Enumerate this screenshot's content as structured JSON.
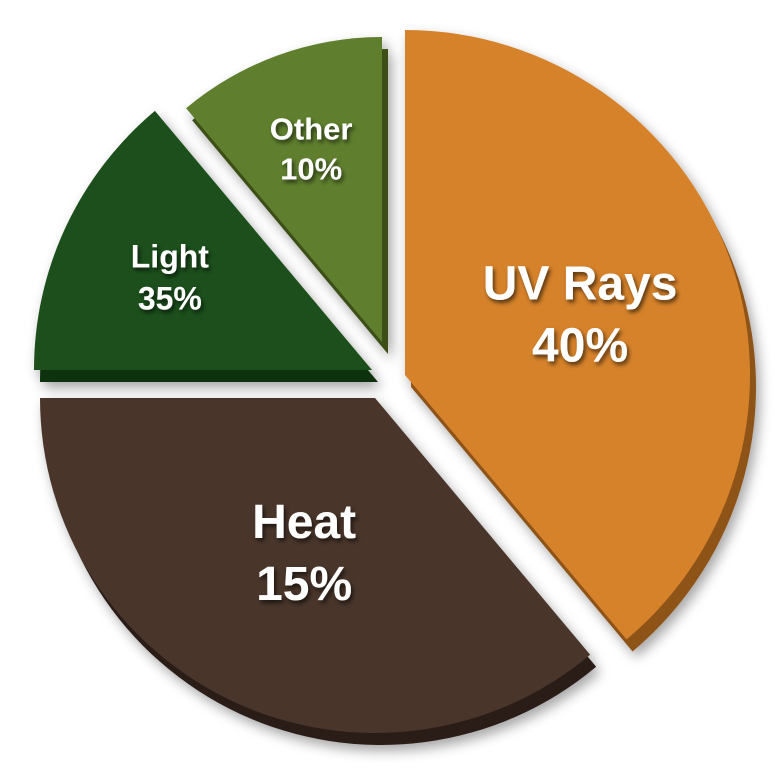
{
  "chart_data": {
    "type": "pie",
    "title": "",
    "start": "top",
    "direction": "clockwise",
    "exploded": true,
    "style": "3d-depth",
    "slices": [
      {
        "label": "UV Rays",
        "value_label": "40%",
        "value": 40,
        "depicted_share": 38.9,
        "color": "#D6822A",
        "side_color": "#8E5219"
      },
      {
        "label": "Heat",
        "value_label": "15%",
        "value": 15,
        "depicted_share": 36.1,
        "color": "#4A352C",
        "side_color": "#2A1D17"
      },
      {
        "label": "Light",
        "value_label": "35%",
        "value": 35,
        "depicted_share": 13.9,
        "color": "#1F4F1A",
        "side_color": "#10300D"
      },
      {
        "label": "Other",
        "value_label": "10%",
        "value": 10,
        "depicted_share": 11.1,
        "color": "#5F7F2F",
        "side_color": "#3A5019"
      }
    ]
  }
}
